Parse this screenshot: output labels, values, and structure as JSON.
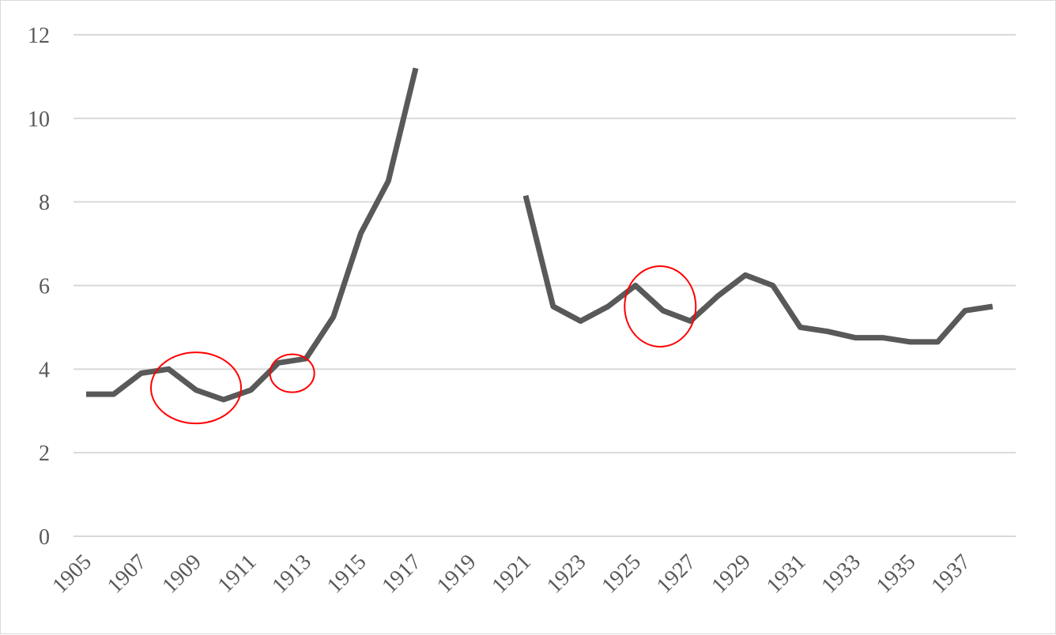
{
  "chart_data": {
    "type": "line",
    "title": "",
    "xlabel": "",
    "ylabel": "",
    "ylim": [
      0,
      12
    ],
    "y_ticks": [
      0,
      2,
      4,
      6,
      8,
      10,
      12
    ],
    "x_tick_labels": [
      "1905",
      "1907",
      "1909",
      "1911",
      "1913",
      "1915",
      "1917",
      "1919",
      "1921",
      "1923",
      "1925",
      "1927",
      "1929",
      "1931",
      "1933",
      "1935",
      "1937"
    ],
    "x": [
      1905,
      1906,
      1907,
      1908,
      1909,
      1910,
      1911,
      1912,
      1913,
      1914,
      1915,
      1916,
      1917,
      1918,
      1919,
      1920,
      1921,
      1922,
      1923,
      1924,
      1925,
      1926,
      1927,
      1928,
      1929,
      1930,
      1931,
      1932,
      1933,
      1934,
      1935,
      1936,
      1937,
      1938
    ],
    "series": [
      {
        "values": [
          3.4,
          3.4,
          3.9,
          4.0,
          3.5,
          3.27,
          3.5,
          4.15,
          4.25,
          5.25,
          7.25,
          8.5,
          11.2,
          null,
          null,
          null,
          8.15,
          5.5,
          5.15,
          5.5,
          6.0,
          5.4,
          5.15,
          5.75,
          6.25,
          6.0,
          5.0,
          4.9,
          4.75,
          4.75,
          4.65,
          4.65,
          5.4,
          5.5
        ],
        "color": "#595959"
      }
    ],
    "grid": "horizontal",
    "legend": "none",
    "annotations": [
      {
        "shape": "circle",
        "color": "#ff0000",
        "x": 1909,
        "y": 3.55
      },
      {
        "shape": "circle",
        "color": "#ff0000",
        "x": 1912.5,
        "y": 3.9
      },
      {
        "shape": "circle",
        "color": "#ff0000",
        "x": 1925.9,
        "y": 5.5
      }
    ]
  }
}
